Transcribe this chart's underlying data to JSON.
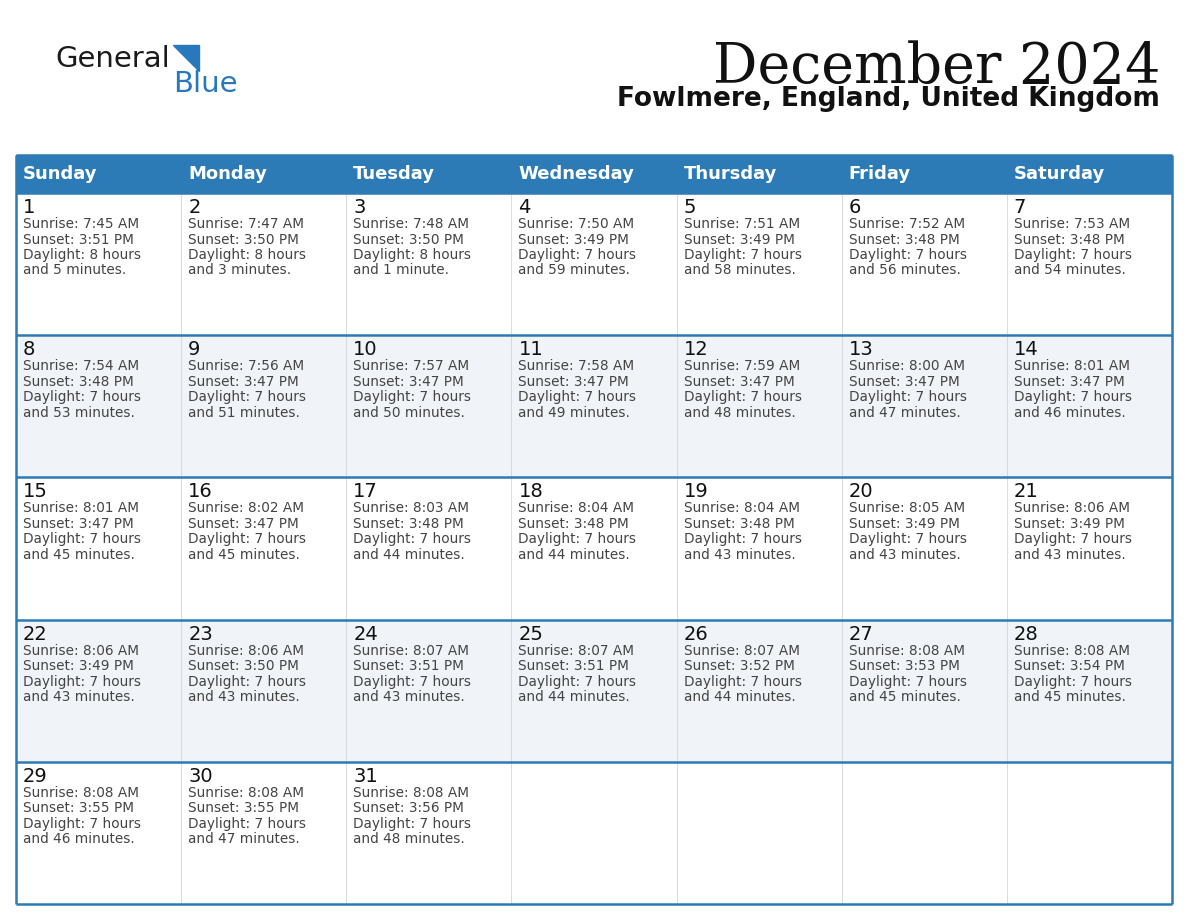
{
  "title": "December 2024",
  "subtitle": "Fowlmere, England, United Kingdom",
  "days_of_week": [
    "Sunday",
    "Monday",
    "Tuesday",
    "Wednesday",
    "Thursday",
    "Friday",
    "Saturday"
  ],
  "header_bg": "#2C7BB6",
  "header_text": "#FFFFFF",
  "cell_bg_light": "#F0F4F8",
  "cell_bg_white": "#FFFFFF",
  "row_bgs": [
    "#FFFFFF",
    "#F0F4F8",
    "#FFFFFF",
    "#F0F4F8",
    "#FFFFFF"
  ],
  "separator_color": "#2C7BB6",
  "text_color": "#444444",
  "day_num_color": "#111111",
  "logo_dark": "#1A1A1A",
  "logo_blue": "#2878BE",
  "fig_bg": "#FFFFFF",
  "cal_data": [
    [
      {
        "day": 1,
        "sunrise": "7:45 AM",
        "sunset": "3:51 PM",
        "daylight_line1": "Daylight: 8 hours",
        "daylight_line2": "and 5 minutes."
      },
      {
        "day": 2,
        "sunrise": "7:47 AM",
        "sunset": "3:50 PM",
        "daylight_line1": "Daylight: 8 hours",
        "daylight_line2": "and 3 minutes."
      },
      {
        "day": 3,
        "sunrise": "7:48 AM",
        "sunset": "3:50 PM",
        "daylight_line1": "Daylight: 8 hours",
        "daylight_line2": "and 1 minute."
      },
      {
        "day": 4,
        "sunrise": "7:50 AM",
        "sunset": "3:49 PM",
        "daylight_line1": "Daylight: 7 hours",
        "daylight_line2": "and 59 minutes."
      },
      {
        "day": 5,
        "sunrise": "7:51 AM",
        "sunset": "3:49 PM",
        "daylight_line1": "Daylight: 7 hours",
        "daylight_line2": "and 58 minutes."
      },
      {
        "day": 6,
        "sunrise": "7:52 AM",
        "sunset": "3:48 PM",
        "daylight_line1": "Daylight: 7 hours",
        "daylight_line2": "and 56 minutes."
      },
      {
        "day": 7,
        "sunrise": "7:53 AM",
        "sunset": "3:48 PM",
        "daylight_line1": "Daylight: 7 hours",
        "daylight_line2": "and 54 minutes."
      }
    ],
    [
      {
        "day": 8,
        "sunrise": "7:54 AM",
        "sunset": "3:48 PM",
        "daylight_line1": "Daylight: 7 hours",
        "daylight_line2": "and 53 minutes."
      },
      {
        "day": 9,
        "sunrise": "7:56 AM",
        "sunset": "3:47 PM",
        "daylight_line1": "Daylight: 7 hours",
        "daylight_line2": "and 51 minutes."
      },
      {
        "day": 10,
        "sunrise": "7:57 AM",
        "sunset": "3:47 PM",
        "daylight_line1": "Daylight: 7 hours",
        "daylight_line2": "and 50 minutes."
      },
      {
        "day": 11,
        "sunrise": "7:58 AM",
        "sunset": "3:47 PM",
        "daylight_line1": "Daylight: 7 hours",
        "daylight_line2": "and 49 minutes."
      },
      {
        "day": 12,
        "sunrise": "7:59 AM",
        "sunset": "3:47 PM",
        "daylight_line1": "Daylight: 7 hours",
        "daylight_line2": "and 48 minutes."
      },
      {
        "day": 13,
        "sunrise": "8:00 AM",
        "sunset": "3:47 PM",
        "daylight_line1": "Daylight: 7 hours",
        "daylight_line2": "and 47 minutes."
      },
      {
        "day": 14,
        "sunrise": "8:01 AM",
        "sunset": "3:47 PM",
        "daylight_line1": "Daylight: 7 hours",
        "daylight_line2": "and 46 minutes."
      }
    ],
    [
      {
        "day": 15,
        "sunrise": "8:01 AM",
        "sunset": "3:47 PM",
        "daylight_line1": "Daylight: 7 hours",
        "daylight_line2": "and 45 minutes."
      },
      {
        "day": 16,
        "sunrise": "8:02 AM",
        "sunset": "3:47 PM",
        "daylight_line1": "Daylight: 7 hours",
        "daylight_line2": "and 45 minutes."
      },
      {
        "day": 17,
        "sunrise": "8:03 AM",
        "sunset": "3:48 PM",
        "daylight_line1": "Daylight: 7 hours",
        "daylight_line2": "and 44 minutes."
      },
      {
        "day": 18,
        "sunrise": "8:04 AM",
        "sunset": "3:48 PM",
        "daylight_line1": "Daylight: 7 hours",
        "daylight_line2": "and 44 minutes."
      },
      {
        "day": 19,
        "sunrise": "8:04 AM",
        "sunset": "3:48 PM",
        "daylight_line1": "Daylight: 7 hours",
        "daylight_line2": "and 43 minutes."
      },
      {
        "day": 20,
        "sunrise": "8:05 AM",
        "sunset": "3:49 PM",
        "daylight_line1": "Daylight: 7 hours",
        "daylight_line2": "and 43 minutes."
      },
      {
        "day": 21,
        "sunrise": "8:06 AM",
        "sunset": "3:49 PM",
        "daylight_line1": "Daylight: 7 hours",
        "daylight_line2": "and 43 minutes."
      }
    ],
    [
      {
        "day": 22,
        "sunrise": "8:06 AM",
        "sunset": "3:49 PM",
        "daylight_line1": "Daylight: 7 hours",
        "daylight_line2": "and 43 minutes."
      },
      {
        "day": 23,
        "sunrise": "8:06 AM",
        "sunset": "3:50 PM",
        "daylight_line1": "Daylight: 7 hours",
        "daylight_line2": "and 43 minutes."
      },
      {
        "day": 24,
        "sunrise": "8:07 AM",
        "sunset": "3:51 PM",
        "daylight_line1": "Daylight: 7 hours",
        "daylight_line2": "and 43 minutes."
      },
      {
        "day": 25,
        "sunrise": "8:07 AM",
        "sunset": "3:51 PM",
        "daylight_line1": "Daylight: 7 hours",
        "daylight_line2": "and 44 minutes."
      },
      {
        "day": 26,
        "sunrise": "8:07 AM",
        "sunset": "3:52 PM",
        "daylight_line1": "Daylight: 7 hours",
        "daylight_line2": "and 44 minutes."
      },
      {
        "day": 27,
        "sunrise": "8:08 AM",
        "sunset": "3:53 PM",
        "daylight_line1": "Daylight: 7 hours",
        "daylight_line2": "and 45 minutes."
      },
      {
        "day": 28,
        "sunrise": "8:08 AM",
        "sunset": "3:54 PM",
        "daylight_line1": "Daylight: 7 hours",
        "daylight_line2": "and 45 minutes."
      }
    ],
    [
      {
        "day": 29,
        "sunrise": "8:08 AM",
        "sunset": "3:55 PM",
        "daylight_line1": "Daylight: 7 hours",
        "daylight_line2": "and 46 minutes."
      },
      {
        "day": 30,
        "sunrise": "8:08 AM",
        "sunset": "3:55 PM",
        "daylight_line1": "Daylight: 7 hours",
        "daylight_line2": "and 47 minutes."
      },
      {
        "day": 31,
        "sunrise": "8:08 AM",
        "sunset": "3:56 PM",
        "daylight_line1": "Daylight: 7 hours",
        "daylight_line2": "and 48 minutes."
      },
      null,
      null,
      null,
      null
    ]
  ]
}
